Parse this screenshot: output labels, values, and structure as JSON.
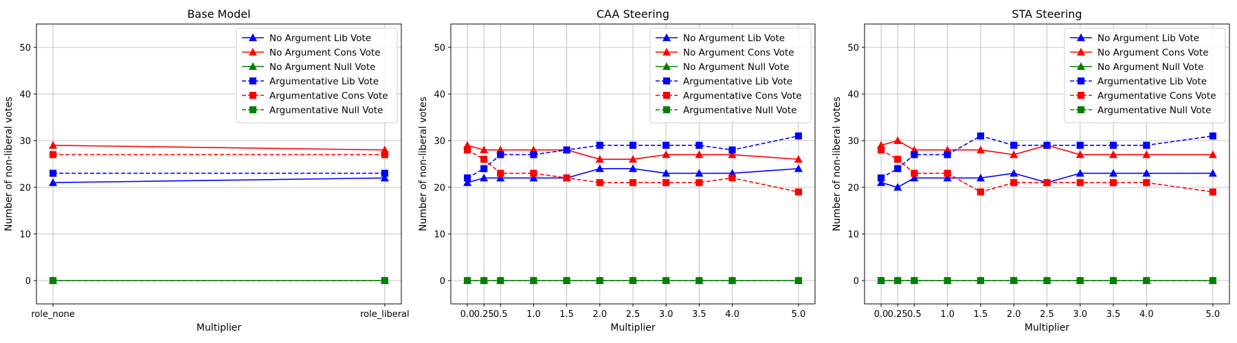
{
  "chart_data": [
    {
      "type": "line",
      "title": "Base Model",
      "xlabel": "Multiplier",
      "ylabel": "Number of non-liberal votes",
      "x": [
        "role_none",
        "role_liberal"
      ],
      "ylim": [
        -5,
        55
      ],
      "yticks": [
        0,
        10,
        20,
        30,
        40,
        50
      ],
      "grid": true,
      "legend_position": "top-right",
      "series": [
        {
          "name": "No Argument Lib Vote",
          "color": "#0000ff",
          "linestyle": "solid",
          "marker": "triangle",
          "values": [
            21,
            22
          ]
        },
        {
          "name": "No Argument Cons Vote",
          "color": "#ff0000",
          "linestyle": "solid",
          "marker": "triangle",
          "values": [
            29,
            28
          ]
        },
        {
          "name": "No Argument Null Vote",
          "color": "#008000",
          "linestyle": "solid",
          "marker": "triangle",
          "values": [
            0,
            0
          ]
        },
        {
          "name": "Argumentative Lib Vote",
          "color": "#0000ff",
          "linestyle": "dashed",
          "marker": "square",
          "values": [
            23,
            23
          ]
        },
        {
          "name": "Argumentative Cons Vote",
          "color": "#ff0000",
          "linestyle": "dashed",
          "marker": "square",
          "values": [
            27,
            27
          ]
        },
        {
          "name": "Argumentative Null Vote",
          "color": "#008000",
          "linestyle": "dashed",
          "marker": "square",
          "values": [
            0,
            0
          ]
        }
      ]
    },
    {
      "type": "line",
      "title": "CAA Steering",
      "xlabel": "Multiplier",
      "ylabel": "Number of non-liberal votes",
      "x": [
        "0.0",
        "0.25",
        "0.5",
        "1.0",
        "1.5",
        "2.0",
        "2.5",
        "3.0",
        "3.5",
        "4.0",
        "5.0"
      ],
      "ylim": [
        -5,
        55
      ],
      "yticks": [
        0,
        10,
        20,
        30,
        40,
        50
      ],
      "grid": true,
      "legend_position": "top-right",
      "series": [
        {
          "name": "No Argument Lib Vote",
          "color": "#0000ff",
          "linestyle": "solid",
          "marker": "triangle",
          "values": [
            21,
            22,
            22,
            22,
            22,
            24,
            24,
            23,
            23,
            23,
            24
          ]
        },
        {
          "name": "No Argument Cons Vote",
          "color": "#ff0000",
          "linestyle": "solid",
          "marker": "triangle",
          "values": [
            29,
            28,
            28,
            28,
            28,
            26,
            26,
            27,
            27,
            27,
            26
          ]
        },
        {
          "name": "No Argument Null Vote",
          "color": "#008000",
          "linestyle": "solid",
          "marker": "triangle",
          "values": [
            0,
            0,
            0,
            0,
            0,
            0,
            0,
            0,
            0,
            0,
            0
          ]
        },
        {
          "name": "Argumentative Lib Vote",
          "color": "#0000ff",
          "linestyle": "dashed",
          "marker": "square",
          "values": [
            22,
            24,
            27,
            27,
            28,
            29,
            29,
            29,
            29,
            28,
            31
          ]
        },
        {
          "name": "Argumentative Cons Vote",
          "color": "#ff0000",
          "linestyle": "dashed",
          "marker": "square",
          "values": [
            28,
            26,
            23,
            23,
            22,
            21,
            21,
            21,
            21,
            22,
            19
          ]
        },
        {
          "name": "Argumentative Null Vote",
          "color": "#008000",
          "linestyle": "dashed",
          "marker": "square",
          "values": [
            0,
            0,
            0,
            0,
            0,
            0,
            0,
            0,
            0,
            0,
            0
          ]
        }
      ]
    },
    {
      "type": "line",
      "title": "STA Steering",
      "xlabel": "Multiplier",
      "ylabel": "Number of non-liberal votes",
      "x": [
        "0.0",
        "0.25",
        "0.5",
        "1.0",
        "1.5",
        "2.0",
        "2.5",
        "3.0",
        "3.5",
        "4.0",
        "5.0"
      ],
      "ylim": [
        -5,
        55
      ],
      "yticks": [
        0,
        10,
        20,
        30,
        40,
        50
      ],
      "grid": true,
      "legend_position": "top-right",
      "series": [
        {
          "name": "No Argument Lib Vote",
          "color": "#0000ff",
          "linestyle": "solid",
          "marker": "triangle",
          "values": [
            21,
            20,
            22,
            22,
            22,
            23,
            21,
            23,
            23,
            23,
            23
          ]
        },
        {
          "name": "No Argument Cons Vote",
          "color": "#ff0000",
          "linestyle": "solid",
          "marker": "triangle",
          "values": [
            29,
            30,
            28,
            28,
            28,
            27,
            29,
            27,
            27,
            27,
            27
          ]
        },
        {
          "name": "No Argument Null Vote",
          "color": "#008000",
          "linestyle": "solid",
          "marker": "triangle",
          "values": [
            0,
            0,
            0,
            0,
            0,
            0,
            0,
            0,
            0,
            0,
            0
          ]
        },
        {
          "name": "Argumentative Lib Vote",
          "color": "#0000ff",
          "linestyle": "dashed",
          "marker": "square",
          "values": [
            22,
            24,
            27,
            27,
            31,
            29,
            29,
            29,
            29,
            29,
            31
          ]
        },
        {
          "name": "Argumentative Cons Vote",
          "color": "#ff0000",
          "linestyle": "dashed",
          "marker": "square",
          "values": [
            28,
            26,
            23,
            23,
            19,
            21,
            21,
            21,
            21,
            21,
            19
          ]
        },
        {
          "name": "Argumentative Null Vote",
          "color": "#008000",
          "linestyle": "dashed",
          "marker": "square",
          "values": [
            0,
            0,
            0,
            0,
            0,
            0,
            0,
            0,
            0,
            0,
            0
          ]
        }
      ]
    }
  ]
}
